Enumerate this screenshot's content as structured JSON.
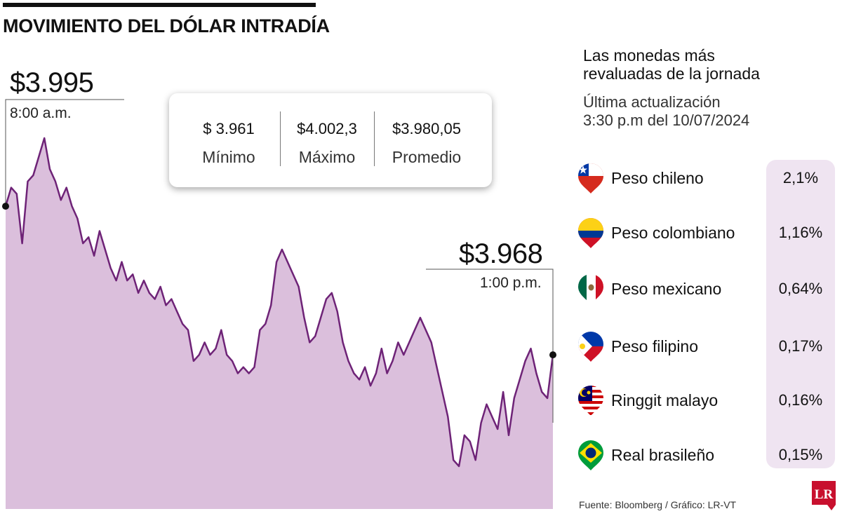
{
  "header": {
    "title": "MOVIMIENTO DEL DÓLAR INTRADÍA"
  },
  "chart_data": {
    "type": "area",
    "series": [
      {
        "values": [
          3992,
          3995,
          3994,
          3986,
          3996,
          3997,
          4000,
          4003,
          3998,
          3996,
          3993,
          3995,
          3992,
          3990,
          3986,
          3987,
          3984,
          3988,
          3985,
          3982,
          3980,
          3983,
          3980,
          3981,
          3978,
          3980,
          3978,
          3977,
          3979,
          3976,
          3977,
          3975,
          3973,
          3972,
          3967,
          3968,
          3970,
          3968,
          3969,
          3972,
          3968,
          3967,
          3965,
          3966,
          3965,
          3966,
          3972,
          3973,
          3976,
          3983,
          3985,
          3983,
          3981,
          3979,
          3974,
          3970,
          3971,
          3974,
          3977,
          3978,
          3975,
          3970,
          3967,
          3965,
          3964,
          3966,
          3963,
          3965,
          3969,
          3965,
          3967,
          3970,
          3968,
          3970,
          3972,
          3974,
          3972,
          3970,
          3966,
          3962,
          3958,
          3951,
          3950,
          3955,
          3954,
          3951,
          3957,
          3960,
          3958,
          3956,
          3962,
          3955,
          3961,
          3964,
          3967,
          3969,
          3965,
          3962,
          3961,
          3968
        ]
      }
    ],
    "annotations": [
      {
        "value": "$3.995",
        "label": "8:00 a.m."
      },
      {
        "value": "$3.968",
        "label": "1:00 p.m."
      }
    ],
    "stats": [
      {
        "value": "$ 3.961",
        "label": "Mínimo"
      },
      {
        "value": "$4.002,3",
        "label": "Máximo"
      },
      {
        "value": "$3.980,05",
        "label": "Promedio"
      }
    ],
    "colors": {
      "line": "#6e2377",
      "fill": "#dbbfdc",
      "dot": "#111111"
    }
  },
  "panel": {
    "title_line1": "Las monedas más",
    "title_line2": "revaluadas de la jornada",
    "updated_line1": "Última actualización",
    "updated_line2": "3:30 p.m  del 10/07/2024",
    "currencies": [
      {
        "name": "Peso chileno",
        "pct": "2,1%",
        "flag": "chile-flag-icon"
      },
      {
        "name": "Peso colombiano",
        "pct": "1,16%",
        "flag": "colombia-flag-icon"
      },
      {
        "name": "Peso mexicano",
        "pct": "0,64%",
        "flag": "mexico-flag-icon"
      },
      {
        "name": "Peso filipino",
        "pct": "0,17%",
        "flag": "philippines-flag-icon"
      },
      {
        "name": "Ringgit malayo",
        "pct": "0,16%",
        "flag": "malaysia-flag-icon"
      },
      {
        "name": "Real brasileño",
        "pct": "0,15%",
        "flag": "brazil-flag-icon"
      }
    ]
  },
  "footer": {
    "source": "Fuente: Bloomberg / Gráfico: LR-VT",
    "logo": "LR"
  }
}
